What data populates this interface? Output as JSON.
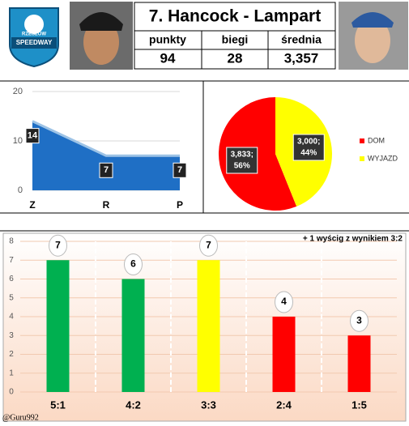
{
  "header": {
    "title": "7. Hancock - Lampart",
    "columns": [
      "punkty",
      "biegi",
      "średnia"
    ],
    "values": [
      "94",
      "28",
      "3,357"
    ],
    "logo": [
      "RZESZÓW",
      "SPEEDWAY"
    ]
  },
  "chart_data": [
    {
      "type": "area",
      "categories": [
        "Z",
        "R",
        "P"
      ],
      "values": [
        14,
        7,
        7
      ],
      "ylim": [
        0,
        20
      ],
      "yticks": [
        0,
        10,
        20
      ],
      "grid": true,
      "color": "#1f6fc5",
      "line_color": "#9dc3e6"
    },
    {
      "type": "pie",
      "categories": [
        "DOM",
        "WYJAZD"
      ],
      "values": [
        3.833,
        3.0
      ],
      "value_labels": [
        [
          "3,833;",
          "56%"
        ],
        [
          "3,000;",
          "44%"
        ]
      ],
      "colors": [
        "#ff0000",
        "#ffff00"
      ],
      "legend": "right"
    },
    {
      "type": "bar",
      "categories": [
        "5:1",
        "4:2",
        "3:3",
        "2:4",
        "1:5"
      ],
      "values": [
        7,
        6,
        7,
        4,
        3
      ],
      "colors": [
        "#00b050",
        "#00b050",
        "#ffff00",
        "#ff0000",
        "#ff0000"
      ],
      "ylim": [
        0,
        8
      ],
      "yticks": [
        0,
        1,
        2,
        3,
        4,
        5,
        6,
        7,
        8
      ],
      "grid": true,
      "annotation": "+ 1 wyścig z wynikiem 3:2",
      "credit": "@Guru992"
    }
  ]
}
